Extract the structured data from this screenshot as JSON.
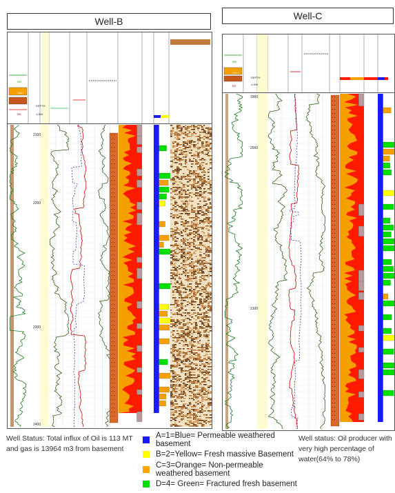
{
  "wells": [
    {
      "title": "Well-B",
      "depth_ticks": [
        "2100",
        "2200",
        "2300",
        "2400"
      ]
    },
    {
      "title": "Well-C",
      "depth_ticks": [
        "1900",
        "2000",
        "2100"
      ]
    }
  ],
  "header_labels": {
    "gr": "GR",
    "cali": "CALI",
    "bs": "BS",
    "depth": "DEPTH",
    "scale": "1:300"
  },
  "captions": {
    "well_b": "Well Status: Total influx of Oil is 113 MT and gas is 13964 m3 from basement",
    "well_c": "Well status: Oil producer with very high percentage of water(64% to 78%)"
  },
  "legend": [
    {
      "label": "A=1=Blue= Permeable weathered basement",
      "color": "#1a1aff"
    },
    {
      "label": "B=2=Yellow= Fresh massive Basement",
      "color": "#ffff00"
    },
    {
      "label": "C=3=Orange= Non-permeable weathered basement",
      "color": "#ffa500"
    },
    {
      "label": "D=4= Green= Fractured fresh basement",
      "color": "#00dd00"
    }
  ],
  "colors": {
    "red": "#ff1a00",
    "orange": "#f5a000",
    "brown": "#b87a4b",
    "mauve": "#b89a9a",
    "blue": "#1a1aff",
    "green": "#00dd00",
    "yellow": "#ffff00",
    "cream": "#fffbd0"
  }
}
